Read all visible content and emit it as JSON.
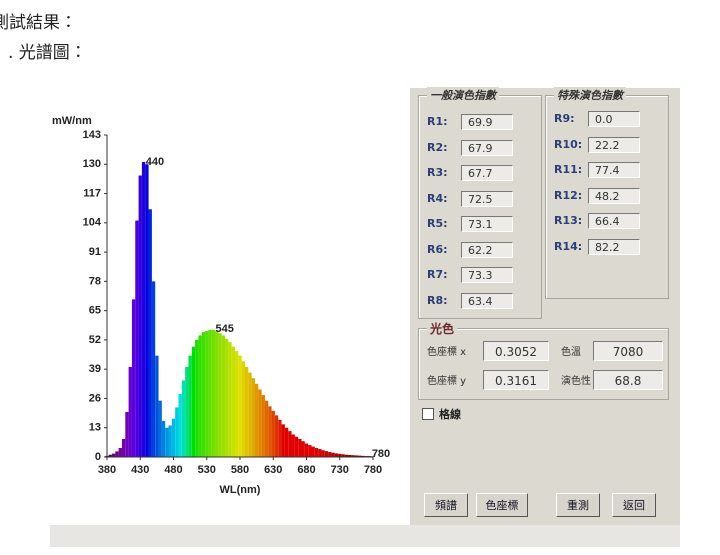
{
  "heading": [
    "測試結果：",
    ". 光譜圖："
  ],
  "chart_data": {
    "type": "bar",
    "y_label": "mW/nm",
    "x_label": "WL(nm)",
    "x": [
      380,
      385,
      390,
      395,
      400,
      405,
      410,
      415,
      420,
      425,
      430,
      435,
      440,
      445,
      450,
      455,
      460,
      465,
      470,
      475,
      480,
      485,
      490,
      495,
      500,
      505,
      510,
      515,
      520,
      525,
      530,
      535,
      540,
      545,
      550,
      555,
      560,
      565,
      570,
      575,
      580,
      585,
      590,
      595,
      600,
      605,
      610,
      615,
      620,
      625,
      630,
      635,
      640,
      645,
      650,
      655,
      660,
      665,
      670,
      675,
      680,
      685,
      690,
      695,
      700,
      705,
      710,
      715,
      720,
      725,
      730,
      735,
      740,
      745,
      750,
      755,
      760,
      765,
      770,
      775,
      780
    ],
    "values": [
      0.5,
      1,
      1.5,
      2.5,
      4,
      8,
      20,
      40,
      70,
      105,
      125,
      131,
      130,
      110,
      78,
      45,
      25,
      16,
      13,
      14,
      17,
      22,
      28,
      34,
      40,
      45,
      49,
      52,
      54,
      55.5,
      56,
      56.5,
      56.5,
      56,
      55,
      54,
      52.5,
      51,
      49,
      47,
      45,
      42.5,
      40,
      37.5,
      35,
      32.5,
      30,
      27.5,
      25,
      22.5,
      20.5,
      18.5,
      16.5,
      14.5,
      13,
      11.5,
      10,
      9,
      8,
      7,
      6,
      5.3,
      4.6,
      4,
      3.5,
      3,
      2.6,
      2.2,
      1.9,
      1.6,
      1.4,
      1.2,
      1,
      0.9,
      0.8,
      0.7,
      0.6,
      0.5,
      0.4,
      0.4,
      0.3
    ],
    "peak_labels": [
      440,
      545,
      780
    ],
    "xlim": [
      380,
      780
    ],
    "ylim": [
      0,
      143
    ],
    "xticks": [
      380,
      430,
      480,
      530,
      580,
      630,
      680,
      730,
      780
    ],
    "yticks": [
      0,
      13,
      26,
      39,
      52,
      65,
      78,
      91,
      104,
      117,
      130,
      143
    ]
  },
  "panel": {
    "general": {
      "title": "一般演色指數",
      "items": [
        {
          "label": "R1:",
          "value": "69.9"
        },
        {
          "label": "R2:",
          "value": "67.9"
        },
        {
          "label": "R3:",
          "value": "67.7"
        },
        {
          "label": "R4:",
          "value": "72.5"
        },
        {
          "label": "R5:",
          "value": "73.1"
        },
        {
          "label": "R6:",
          "value": "62.2"
        },
        {
          "label": "R7:",
          "value": "73.3"
        },
        {
          "label": "R8:",
          "value": "63.4"
        }
      ]
    },
    "special": {
      "title": "特殊演色指數",
      "items": [
        {
          "label": "R9:",
          "value": "0.0"
        },
        {
          "label": "R10:",
          "value": "22.2"
        },
        {
          "label": "R11:",
          "value": "77.4"
        },
        {
          "label": "R12:",
          "value": "48.2"
        },
        {
          "label": "R13:",
          "value": "66.4"
        },
        {
          "label": "R14:",
          "value": "82.2"
        }
      ]
    },
    "light": {
      "title": "光色",
      "x_label": "色座標 x",
      "x_value": "0.3052",
      "y_label": "色座標 y",
      "y_value": "0.3161",
      "cct_label": "色溫",
      "cct_value": "7080",
      "cri_label": "演色性",
      "cri_value": "68.8"
    },
    "grid_checkbox": "格線",
    "buttons": [
      "頻譜",
      "色座標",
      "重測",
      "返回"
    ]
  }
}
